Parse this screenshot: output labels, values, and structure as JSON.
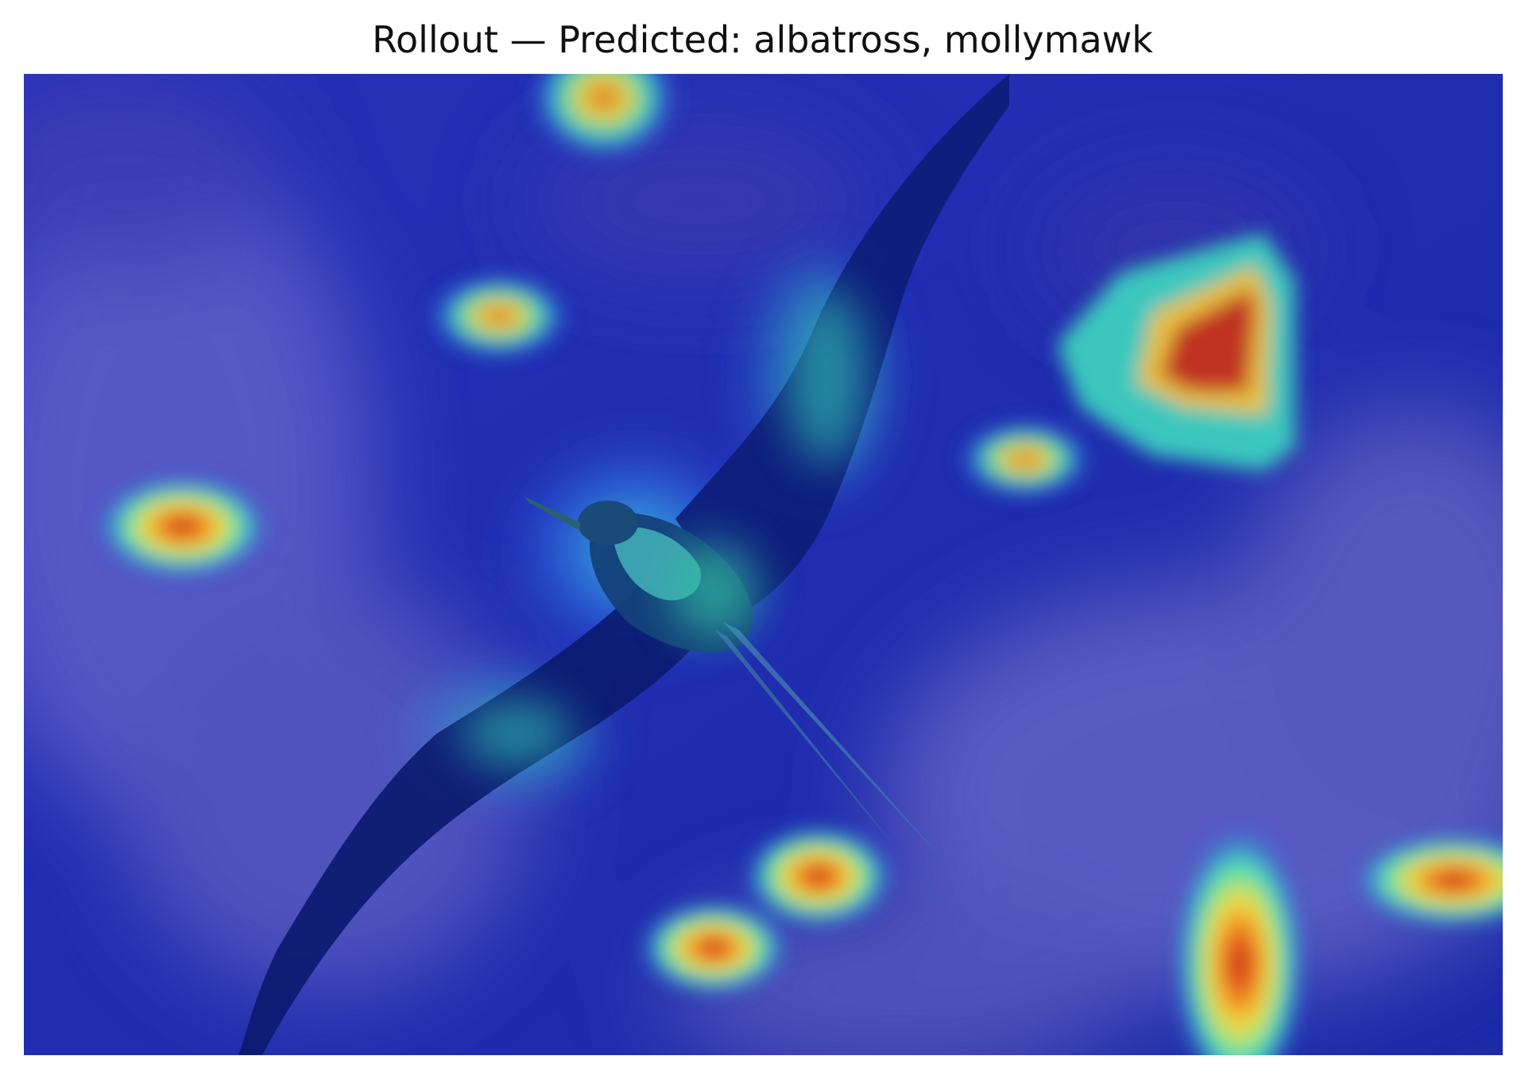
{
  "figure": {
    "title": "Rollout — Predicted: albatross, mollymawk"
  },
  "colors": {
    "background_blue": "#1f2fb6",
    "cloud_violet": "#5c5cc4",
    "bird_dark": "#0a1a6a",
    "heat_low": "#2340e0",
    "heat_mid": "#3fe0c0",
    "heat_high": "#f0e040",
    "heat_peak": "#c01818"
  }
}
